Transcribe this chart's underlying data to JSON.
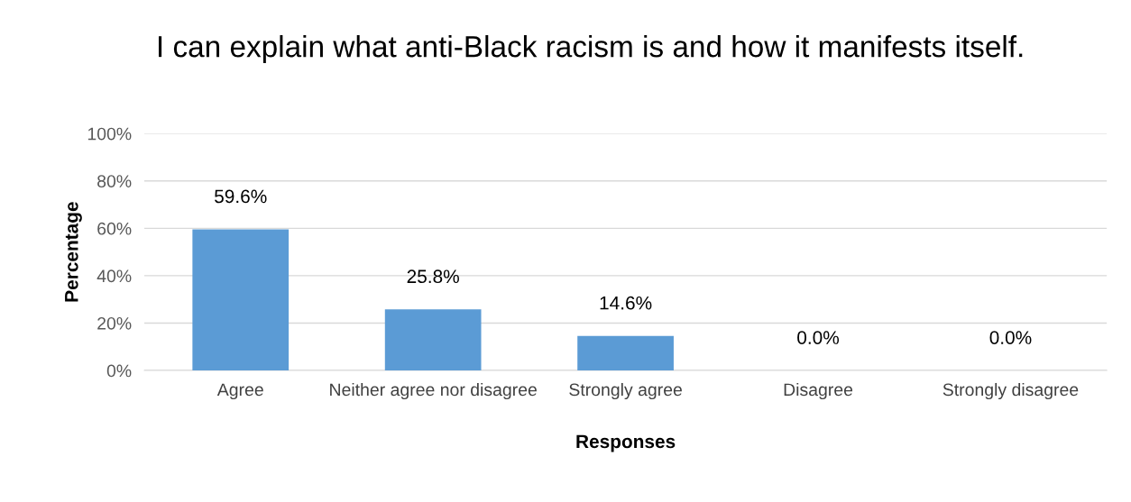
{
  "chart_data": {
    "type": "bar",
    "title": "I can explain what anti-Black racism is and how it manifests itself.",
    "xlabel": "Responses",
    "ylabel": "Percentage",
    "categories": [
      "Agree",
      "Neither agree nor disagree",
      "Strongly agree",
      "Disagree",
      "Strongly disagree"
    ],
    "values": [
      59.6,
      25.8,
      14.6,
      0.0,
      0.0
    ],
    "value_labels": [
      "59.6%",
      "25.8%",
      "14.6%",
      "0.0%",
      "0.0%"
    ],
    "color": "#5b9bd5",
    "ylim": [
      0,
      100
    ],
    "yticks": [
      {
        "value": 0,
        "label": "0%"
      },
      {
        "value": 20,
        "label": "20%"
      },
      {
        "value": 40,
        "label": "40%"
      },
      {
        "value": 60,
        "label": "60%"
      },
      {
        "value": 80,
        "label": "80%"
      },
      {
        "value": 100,
        "label": "100%"
      }
    ],
    "grid": "y"
  }
}
